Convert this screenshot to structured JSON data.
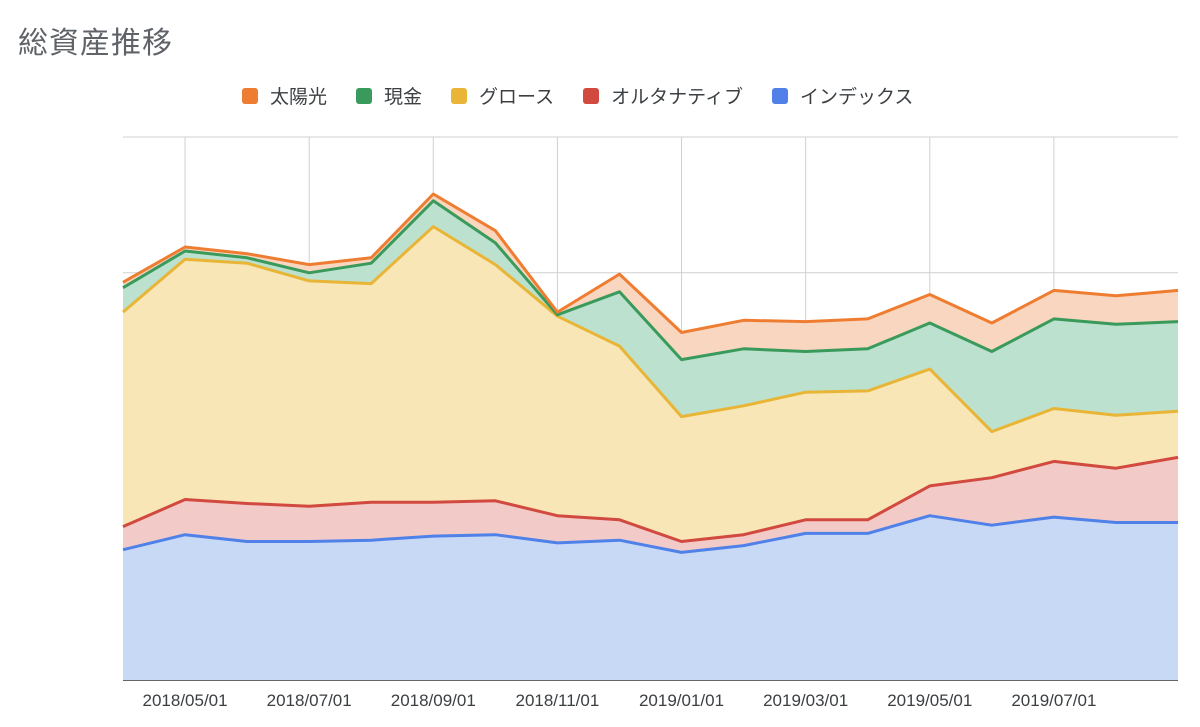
{
  "chart_data": {
    "type": "area",
    "stacked": true,
    "title": "総資産推移",
    "legend_position": "top",
    "grid": true,
    "x": [
      "2018/04",
      "2018/05/01",
      "2018/06",
      "2018/07/01",
      "2018/08",
      "2018/09/01",
      "2018/10",
      "2018/11/01",
      "2018/12",
      "2019/01/01",
      "2019/02",
      "2019/03/01",
      "2019/04",
      "2019/05/01",
      "2019/06",
      "2019/07/01",
      "2019/08",
      "2019/09"
    ],
    "tick_labels": [
      "2018/05/01",
      "2018/07/01",
      "2018/09/01",
      "2018/11/01",
      "2019/01/01",
      "2019/03/01",
      "2019/05/01",
      "2019/07/01"
    ],
    "ylim": [
      0,
      400
    ],
    "y_gridlines": [
      0,
      100,
      200,
      300,
      400
    ],
    "series": [
      {
        "name": "インデックス",
        "color": "#4f81e8",
        "fill": "#c8d9f6",
        "values": [
          96,
          107,
          102,
          102,
          103,
          106,
          107,
          101,
          103,
          94,
          99,
          108,
          108,
          121,
          114,
          120,
          116,
          116
        ]
      },
      {
        "name": "オルタナティブ",
        "color": "#d1493f",
        "fill": "#f2cbc8",
        "values": [
          17,
          26,
          28,
          26,
          28,
          25,
          25,
          20,
          15,
          8,
          8,
          10,
          10,
          22,
          35,
          41,
          40,
          48
        ]
      },
      {
        "name": "グロース",
        "color": "#e8b537",
        "fill": "#f8e6b6",
        "values": [
          158,
          177,
          177,
          166,
          161,
          203,
          174,
          147,
          128,
          92,
          95,
          94,
          95,
          86,
          34,
          39,
          39,
          34
        ]
      },
      {
        "name": "現金",
        "color": "#3a9a5b",
        "fill": "#bde1cf",
        "values": [
          18,
          6,
          4,
          6,
          15,
          19,
          16,
          1,
          40,
          42,
          42,
          30,
          31,
          34,
          59,
          66,
          67,
          66
        ]
      },
      {
        "name": "太陽光",
        "color": "#ef7d31",
        "fill": "#f8d6c0",
        "values": [
          4,
          3,
          3,
          6,
          4,
          5,
          9,
          2,
          13,
          20,
          21,
          22,
          22,
          21,
          21,
          21,
          21,
          23
        ]
      }
    ]
  }
}
